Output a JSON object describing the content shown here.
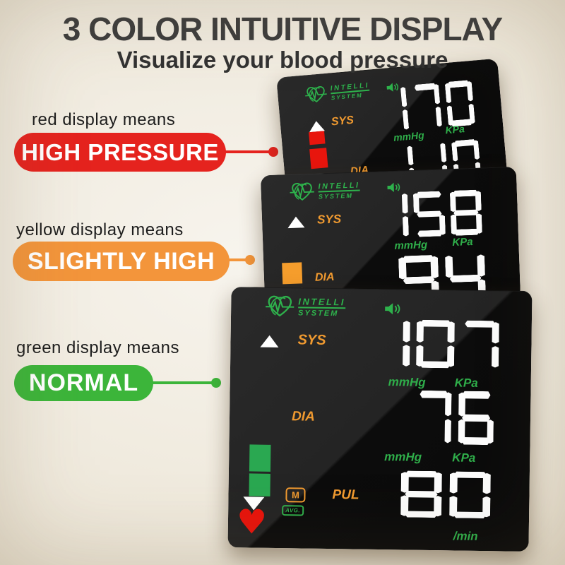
{
  "header": {
    "title": "3 COLOR INTUITIVE DISPLAY",
    "subtitle": "Visualize your blood pressure"
  },
  "callouts": [
    {
      "label": "red display means",
      "badge": "HIGH PRESSURE",
      "color": "#e5231e"
    },
    {
      "label": "yellow display means",
      "badge": "SLIGHTLY HIGH",
      "color": "#f3953b"
    },
    {
      "label": "green display means",
      "badge": "NORMAL",
      "color": "#3cb53a"
    }
  ],
  "display": {
    "brand_line1": "INTELLI",
    "brand_line2": "SYSTEM",
    "labels": {
      "sys": "SYS",
      "dia": "DIA",
      "pul": "PUL",
      "mmhg": "mmHg",
      "kpa": "KPa",
      "per_min": "/min",
      "memory": "M",
      "average": "AVG."
    },
    "colors": {
      "display_green": "#2fae4a",
      "display_orange": "#f09a30",
      "digit_white": "#fcfcfc",
      "heart_red": "#e8140c"
    },
    "icons": {
      "heart": "♥"
    }
  },
  "panels": [
    {
      "id": "high-pressure-display",
      "sys": "170",
      "dia_partial": "110",
      "level_color": "#e8150d"
    },
    {
      "id": "slightly-high-display",
      "sys": "158",
      "dia": "94",
      "level_color": "#f59d2c"
    },
    {
      "id": "normal-display",
      "sys": "107",
      "dia": "76",
      "pul": "80",
      "level_color": "#2aa851"
    }
  ]
}
